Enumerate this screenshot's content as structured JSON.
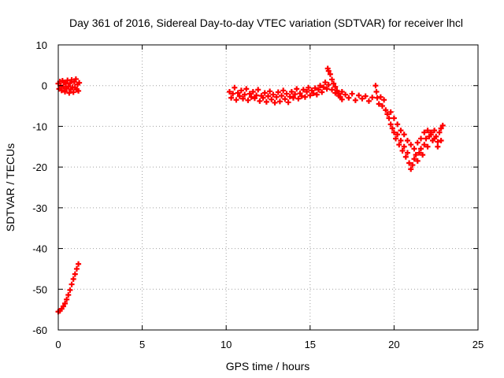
{
  "chart_data": {
    "type": "scatter",
    "title": "Day 361 of 2016, Sidereal Day-to-day VTEC variation (SDTVAR) for receiver lhcl",
    "xlabel": "GPS time / hours",
    "ylabel": "SDTVAR / TECUs",
    "xlim": [
      0,
      25
    ],
    "ylim": [
      -60,
      10
    ],
    "xticks": [
      "0",
      "5",
      "10",
      "15",
      "20",
      "25"
    ],
    "yticks": [
      "10",
      "0",
      "-10",
      "-20",
      "-30",
      "-40",
      "-50",
      "-60"
    ],
    "grid": true,
    "marker_color": "#ff0000",
    "series": [
      {
        "points": [
          [
            0.0,
            0.5
          ],
          [
            0.05,
            -0.8
          ],
          [
            0.1,
            1.0
          ],
          [
            0.15,
            0.0
          ],
          [
            0.2,
            -1.2
          ],
          [
            0.25,
            1.2
          ],
          [
            0.3,
            -0.3
          ],
          [
            0.35,
            0.8
          ],
          [
            0.4,
            -1.5
          ],
          [
            0.45,
            0.5
          ],
          [
            0.5,
            -0.7
          ],
          [
            0.55,
            1.3
          ],
          [
            0.6,
            -0.2
          ],
          [
            0.65,
            -1.8
          ],
          [
            0.7,
            0.6
          ],
          [
            0.75,
            -0.9
          ],
          [
            0.8,
            1.4
          ],
          [
            0.85,
            -0.4
          ],
          [
            0.9,
            -1.6
          ],
          [
            0.95,
            0.9
          ],
          [
            1.0,
            -0.5
          ],
          [
            1.05,
            1.6
          ],
          [
            1.1,
            -1.0
          ],
          [
            1.15,
            0.3
          ],
          [
            1.2,
            -1.3
          ],
          [
            1.25,
            0.7
          ],
          [
            0.0,
            -55.5
          ],
          [
            0.1,
            -55.3
          ],
          [
            0.2,
            -54.8
          ],
          [
            0.3,
            -54.2
          ],
          [
            0.4,
            -53.5
          ],
          [
            0.5,
            -52.5
          ],
          [
            0.6,
            -51.4
          ],
          [
            0.7,
            -50.2
          ],
          [
            0.8,
            -48.8
          ],
          [
            0.9,
            -47.5
          ],
          [
            1.0,
            -46.3
          ],
          [
            1.1,
            -45.0
          ],
          [
            1.2,
            -43.8
          ],
          [
            10.2,
            -1.5
          ],
          [
            10.3,
            -3.0
          ],
          [
            10.4,
            -2.0
          ],
          [
            10.5,
            -0.5
          ],
          [
            10.6,
            -3.5
          ],
          [
            10.7,
            -1.8
          ],
          [
            10.8,
            -2.6
          ],
          [
            10.9,
            -1.2
          ],
          [
            11.0,
            -3.2
          ],
          [
            11.1,
            -2.2
          ],
          [
            11.2,
            -0.8
          ],
          [
            11.3,
            -3.6
          ],
          [
            11.4,
            -2.0
          ],
          [
            11.5,
            -2.8
          ],
          [
            11.6,
            -1.5
          ],
          [
            11.7,
            -3.1
          ],
          [
            11.8,
            -2.4
          ],
          [
            11.9,
            -1.0
          ],
          [
            12.0,
            -3.8
          ],
          [
            12.1,
            -2.5
          ],
          [
            12.2,
            -3.0
          ],
          [
            12.3,
            -1.8
          ],
          [
            12.4,
            -4.0
          ],
          [
            12.5,
            -2.6
          ],
          [
            12.6,
            -1.4
          ],
          [
            12.7,
            -3.4
          ],
          [
            12.8,
            -2.2
          ],
          [
            12.9,
            -4.2
          ],
          [
            13.0,
            -2.8
          ],
          [
            13.1,
            -1.6
          ],
          [
            13.2,
            -3.9
          ],
          [
            13.3,
            -2.5
          ],
          [
            13.4,
            -1.2
          ],
          [
            13.5,
            -3.3
          ],
          [
            13.6,
            -2.0
          ],
          [
            13.7,
            -4.1
          ],
          [
            13.8,
            -2.7
          ],
          [
            13.9,
            -1.5
          ],
          [
            14.0,
            -3.0
          ],
          [
            14.1,
            -2.1
          ],
          [
            14.2,
            -0.8
          ],
          [
            14.3,
            -3.2
          ],
          [
            14.4,
            -1.9
          ],
          [
            14.5,
            -2.6
          ],
          [
            14.6,
            -1.0
          ],
          [
            14.7,
            -2.8
          ],
          [
            14.8,
            -1.5
          ],
          [
            14.9,
            -0.5
          ],
          [
            15.0,
            -2.4
          ],
          [
            15.1,
            -1.2
          ],
          [
            15.2,
            -1.9
          ],
          [
            15.3,
            -0.6
          ],
          [
            15.4,
            -2.2
          ],
          [
            15.5,
            -1.0
          ],
          [
            15.6,
            0.0
          ],
          [
            15.7,
            -1.6
          ],
          [
            15.8,
            -0.4
          ],
          [
            15.9,
            0.8
          ],
          [
            16.0,
            -0.8
          ],
          [
            16.05,
            4.2
          ],
          [
            16.1,
            3.6
          ],
          [
            16.2,
            2.8
          ],
          [
            16.3,
            1.5
          ],
          [
            16.4,
            0.5
          ],
          [
            16.5,
            -0.3
          ],
          [
            16.6,
            -1.2
          ],
          [
            16.7,
            -2.0
          ],
          [
            16.8,
            -2.8
          ],
          [
            16.9,
            -3.4
          ],
          [
            16.1,
            0.2
          ],
          [
            16.3,
            -1.0
          ],
          [
            16.5,
            -1.8
          ],
          [
            16.7,
            -2.5
          ],
          [
            16.9,
            -1.5
          ],
          [
            17.1,
            -2.2
          ],
          [
            17.3,
            -3.0
          ],
          [
            17.5,
            -2.0
          ],
          [
            17.7,
            -3.6
          ],
          [
            17.9,
            -2.4
          ],
          [
            18.1,
            -3.2
          ],
          [
            18.3,
            -2.6
          ],
          [
            18.5,
            -3.8
          ],
          [
            18.7,
            -2.9
          ],
          [
            18.9,
            0.0
          ],
          [
            18.95,
            -1.5
          ],
          [
            19.0,
            -3.0
          ],
          [
            19.1,
            -4.5
          ],
          [
            19.2,
            -2.8
          ],
          [
            19.3,
            -5.0
          ],
          [
            19.4,
            -3.5
          ],
          [
            19.5,
            -6.0
          ],
          [
            19.6,
            -7.0
          ],
          [
            19.7,
            -8.0
          ],
          [
            19.8,
            -9.5
          ],
          [
            19.9,
            -10.5
          ],
          [
            20.0,
            -11.5
          ],
          [
            20.1,
            -13.0
          ],
          [
            20.2,
            -12.0
          ],
          [
            20.3,
            -14.5
          ],
          [
            20.4,
            -13.5
          ],
          [
            20.5,
            -16.0
          ],
          [
            20.6,
            -15.0
          ],
          [
            20.7,
            -17.5
          ],
          [
            20.8,
            -16.5
          ],
          [
            20.9,
            -19.0
          ],
          [
            21.0,
            -20.5
          ],
          [
            21.1,
            -19.5
          ],
          [
            21.2,
            -18.0
          ],
          [
            21.3,
            -17.0
          ],
          [
            21.4,
            -18.5
          ],
          [
            21.5,
            -16.5
          ],
          [
            21.6,
            -15.5
          ],
          [
            21.7,
            -17.0
          ],
          [
            21.8,
            -14.5
          ],
          [
            21.9,
            -13.0
          ],
          [
            22.0,
            -15.0
          ],
          [
            22.1,
            -12.5
          ],
          [
            22.2,
            -11.5
          ],
          [
            22.3,
            -13.5
          ],
          [
            22.4,
            -11.0
          ],
          [
            22.5,
            -12.5
          ],
          [
            22.6,
            -13.8
          ],
          [
            22.7,
            -11.5
          ],
          [
            22.8,
            -10.5
          ],
          [
            22.9,
            -9.8
          ],
          [
            19.8,
            -6.5
          ],
          [
            20.0,
            -8.0
          ],
          [
            20.2,
            -9.5
          ],
          [
            20.4,
            -11.0
          ],
          [
            20.6,
            -12.0
          ],
          [
            20.8,
            -13.5
          ],
          [
            21.0,
            -14.5
          ],
          [
            21.2,
            -15.5
          ],
          [
            21.4,
            -14.0
          ],
          [
            21.6,
            -13.0
          ],
          [
            21.8,
            -11.5
          ],
          [
            22.0,
            -11.0
          ],
          [
            22.2,
            -12.0
          ],
          [
            22.4,
            -13.0
          ],
          [
            22.6,
            -15.0
          ],
          [
            22.8,
            -13.5
          ]
        ]
      }
    ]
  }
}
